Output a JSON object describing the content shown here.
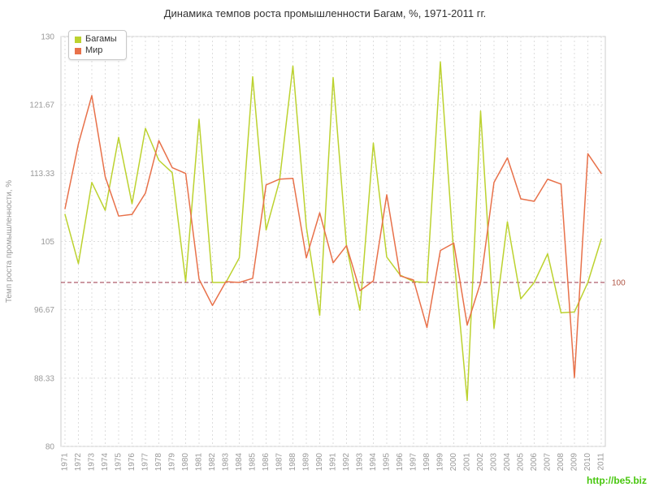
{
  "footer": {
    "watermark": "http://be5.biz"
  },
  "chart_data": {
    "type": "line",
    "title": "Динамика темпов роста промышленности Багам, %, 1971-2011 гг.",
    "xlabel": "",
    "ylabel": "Темп роста промышленности, %",
    "ylim": [
      80,
      130
    ],
    "yticks": [
      130,
      121.67,
      113.33,
      105,
      96.67,
      88.33,
      80
    ],
    "ytick_labels": [
      "130",
      "121.67",
      "113.33",
      "105",
      "96.67",
      "88.33",
      "80"
    ],
    "grid": true,
    "legend_position": "top-left",
    "reference_line": {
      "value": 100,
      "label": "100",
      "color": "#993344"
    },
    "categories": [
      "1971",
      "1972",
      "1973",
      "1974",
      "1975",
      "1976",
      "1977",
      "1978",
      "1979",
      "1980",
      "1981",
      "1982",
      "1983",
      "1984",
      "1985",
      "1986",
      "1987",
      "1988",
      "1989",
      "1990",
      "1991",
      "1992",
      "1993",
      "1994",
      "1995",
      "1996",
      "1997",
      "1998",
      "1999",
      "2000",
      "2001",
      "2002",
      "2003",
      "2004",
      "2005",
      "2006",
      "2007",
      "2008",
      "2009",
      "2010",
      "2011"
    ],
    "series": [
      {
        "name": "Багамы",
        "color": "#bcd22f",
        "values": [
          108.3,
          102.3,
          112.2,
          108.8,
          117.7,
          109.6,
          118.8,
          114.9,
          113.4,
          100.1,
          119.9,
          100.0,
          100.0,
          103.0,
          125.1,
          106.4,
          112.4,
          126.4,
          106.8,
          96.0,
          125.0,
          104.4,
          96.6,
          117.0,
          103.1,
          100.9,
          100.1,
          100.0,
          126.9,
          103.4,
          85.6,
          120.9,
          94.4,
          107.4,
          98.0,
          100.0,
          103.5,
          96.3,
          96.4,
          100.0,
          105.3
        ]
      },
      {
        "name": "Мир",
        "color": "#e8714a",
        "values": [
          109.0,
          116.9,
          122.8,
          112.9,
          108.1,
          108.3,
          110.9,
          117.3,
          114.0,
          113.3,
          100.4,
          97.2,
          100.1,
          100.0,
          100.5,
          111.9,
          112.6,
          112.7,
          103.0,
          108.5,
          102.4,
          104.5,
          99.0,
          100.2,
          110.7,
          100.8,
          100.3,
          94.5,
          103.9,
          104.8,
          94.8,
          100.0,
          112.2,
          115.2,
          110.2,
          109.9,
          112.6,
          112.0,
          88.4,
          115.7,
          113.3
        ]
      }
    ]
  }
}
